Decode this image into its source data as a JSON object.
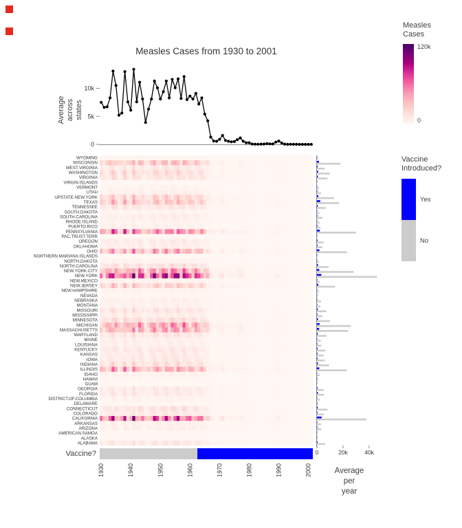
{
  "title": "Measles Cases from 1930 to 2001",
  "colors": {
    "vaccine_yes": "#0000ff",
    "vaccine_no": "#cccccc",
    "line": "#000000",
    "axis_text": "#333333",
    "heat_scale": [
      "#fff7f3",
      "#fde0dd",
      "#fcc5c0",
      "#fa9fb5",
      "#f768a1",
      "#dd3497",
      "#ae017e",
      "#7a0177",
      "#49006a"
    ]
  },
  "legends": {
    "measles": {
      "title_lines": [
        "Measles",
        "Cases"
      ],
      "max_label": "120k",
      "min_label": "0",
      "domain": [
        0,
        120000
      ]
    },
    "vaccine": {
      "title_lines": [
        "Vaccine",
        "Introduced?"
      ],
      "items": [
        {
          "label": "Yes",
          "color": "#0000ff"
        },
        {
          "label": "No",
          "color": "#cccccc"
        }
      ]
    }
  },
  "axes": {
    "line_y": {
      "title_lines": [
        "Average",
        "across",
        "states"
      ],
      "ticks": [
        0,
        5000,
        10000
      ],
      "tick_labels": [
        "0",
        "5k",
        "10k"
      ],
      "max": 13500
    },
    "bar_x": {
      "title_lines": [
        "Average",
        "per",
        "year"
      ],
      "ticks": [
        0,
        20000,
        40000
      ],
      "tick_labels": [
        "0",
        "20k",
        "40k"
      ]
    },
    "year_ticks": [
      1930,
      1940,
      1950,
      1960,
      1970,
      1980,
      1990,
      2000
    ],
    "vaccine_row_label": "Vaccine?"
  },
  "vaccine_year": 1963,
  "chart_data": [
    {
      "type": "line",
      "name": "average-measles-cases-across-states",
      "x_start": 1930,
      "x_end": 2001,
      "ylabel": "Average across states",
      "ylim": [
        0,
        13500
      ],
      "values": [
        7500,
        6600,
        6700,
        8300,
        13100,
        10500,
        5200,
        5600,
        13000,
        7600,
        6100,
        13400,
        7600,
        11100,
        8100,
        3900,
        6300,
        8100,
        11300,
        10100,
        8100,
        9400,
        11300,
        8300,
        11600,
        10100,
        11700,
        8200,
        12100,
        8000,
        8600,
        8100,
        9100,
        7200,
        8300,
        5400,
        4200,
        1300,
        600,
        550,
        900,
        1600,
        700,
        550,
        450,
        500,
        850,
        1150,
        550,
        300,
        300,
        60,
        35,
        30,
        55,
        65,
        140,
        90,
        75,
        400,
        600,
        250,
        55,
        15,
        20,
        10,
        10,
        5,
        5,
        5,
        5,
        5
      ]
    },
    {
      "type": "heatmap",
      "name": "measles-cases-by-state-and-year",
      "x_start": 1930,
      "x_end": 2001,
      "rows": "top-level states[] array, ordered top (WYOMING) to bottom (ALABAMA)",
      "color_domain": [
        0,
        120000
      ],
      "color_scheme": "RdPu (near-white = 0, dark purple = 120k)",
      "note": "cell values estimated as states[i].pre x (national yearly average / 8000) with texture; post-1963 values near zero"
    },
    {
      "type": "bar",
      "name": "average-cases-per-year-by-state",
      "orientation": "horizontal",
      "xlabel": "Average per year",
      "x_ticks": [
        0,
        20000,
        40000
      ],
      "series_note": "two bars per state: blue = average per year after vaccine introduced (states[].post), gray = before vaccine (states[].pre)"
    },
    {
      "type": "strip",
      "name": "vaccine-timeline",
      "label": "Vaccine?",
      "no_span": [
        1930,
        1963
      ],
      "yes_span": [
        1963,
        2001
      ]
    }
  ],
  "states": [
    {
      "name": "WYOMING",
      "pre": 1200,
      "post": 150
    },
    {
      "name": "WISCONSIN",
      "pre": 18000,
      "post": 1600
    },
    {
      "name": "WEST.VIRGINIA",
      "pre": 6000,
      "post": 500
    },
    {
      "name": "WASHINGTON",
      "pre": 10000,
      "post": 900
    },
    {
      "name": "VIRGINIA",
      "pre": 8000,
      "post": 700
    },
    {
      "name": "VIRGIN.ISLANDS",
      "pre": 60,
      "post": 10
    },
    {
      "name": "VERMONT",
      "pre": 1600,
      "post": 120
    },
    {
      "name": "UTAH",
      "pre": 3200,
      "post": 300
    },
    {
      "name": "UPSTATE.NEW.YORK",
      "pre": 13000,
      "post": 1100
    },
    {
      "name": "TEXAS",
      "pre": 17000,
      "post": 2600
    },
    {
      "name": "TENNESSEE",
      "pre": 7000,
      "post": 600
    },
    {
      "name": "SOUTH.DAKOTA",
      "pre": 1900,
      "post": 150
    },
    {
      "name": "SOUTH.CAROLINA",
      "pre": 4200,
      "post": 350
    },
    {
      "name": "RHODE.ISLAND",
      "pre": 2100,
      "post": 150
    },
    {
      "name": "PUERTO.RICO",
      "pre": 2800,
      "post": 400
    },
    {
      "name": "PENNSYLVANIA",
      "pre": 30000,
      "post": 2200
    },
    {
      "name": "PAC.TRUST.TERR",
      "pre": 50,
      "post": 10
    },
    {
      "name": "OREGON",
      "pre": 5200,
      "post": 450
    },
    {
      "name": "OKLAHOMA",
      "pre": 4100,
      "post": 350
    },
    {
      "name": "OHIO",
      "pre": 23000,
      "post": 1900
    },
    {
      "name": "NORTHERN.MARIANA.ISLANDS",
      "pre": 20,
      "post": 5
    },
    {
      "name": "NORTH.DAKOTA",
      "pre": 1600,
      "post": 120
    },
    {
      "name": "NORTH.CAROLINA",
      "pre": 9000,
      "post": 800
    },
    {
      "name": "NEW.YORK.CITY",
      "pre": 28000,
      "post": 1800
    },
    {
      "name": "NEW.YORK",
      "pre": 46000,
      "post": 3400
    },
    {
      "name": "NEW.MEXICO",
      "pre": 2300,
      "post": 250
    },
    {
      "name": "NEW.JERSEY",
      "pre": 14000,
      "post": 1100
    },
    {
      "name": "NEW.HAMPSHIRE",
      "pre": 1600,
      "post": 120
    },
    {
      "name": "NEVADA",
      "pre": 600,
      "post": 80
    },
    {
      "name": "NEBRASKA",
      "pre": 3200,
      "post": 250
    },
    {
      "name": "MONTANA",
      "pre": 2600,
      "post": 200
    },
    {
      "name": "MISSOURI",
      "pre": 7200,
      "post": 600
    },
    {
      "name": "MISSISSIPPI",
      "pre": 4200,
      "post": 350
    },
    {
      "name": "MINNESOTA",
      "pre": 10000,
      "post": 800
    },
    {
      "name": "MICHIGAN",
      "pre": 26000,
      "post": 2000
    },
    {
      "name": "MASSACHUSETTS",
      "pre": 24000,
      "post": 1700
    },
    {
      "name": "MARYLAND",
      "pre": 7200,
      "post": 600
    },
    {
      "name": "MAINE",
      "pre": 3100,
      "post": 250
    },
    {
      "name": "LOUISIANA",
      "pre": 3300,
      "post": 300
    },
    {
      "name": "KENTUCKY",
      "pre": 6400,
      "post": 500
    },
    {
      "name": "KANSAS",
      "pre": 5200,
      "post": 400
    },
    {
      "name": "IOWA",
      "pre": 6100,
      "post": 450
    },
    {
      "name": "INDIANA",
      "pre": 9300,
      "post": 750
    },
    {
      "name": "ILLINOIS",
      "pre": 23000,
      "post": 1800
    },
    {
      "name": "IDAHO",
      "pre": 2200,
      "post": 180
    },
    {
      "name": "HAWAII",
      "pre": 1100,
      "post": 120
    },
    {
      "name": "GUAM",
      "pre": 40,
      "post": 10
    },
    {
      "name": "GEORGIA",
      "pre": 5200,
      "post": 450
    },
    {
      "name": "FLORIDA",
      "pre": 5400,
      "post": 700
    },
    {
      "name": "DISTRICT.OF.COLUMBIA",
      "pre": 2100,
      "post": 150
    },
    {
      "name": "DELAWARE",
      "pre": 1000,
      "post": 80
    },
    {
      "name": "CONNECTICUT",
      "pre": 8200,
      "post": 600
    },
    {
      "name": "COLORADO",
      "pre": 5300,
      "post": 400
    },
    {
      "name": "CALIFORNIA",
      "pre": 38000,
      "post": 3600
    },
    {
      "name": "ARKANSAS",
      "pre": 3200,
      "post": 280
    },
    {
      "name": "ARIZONA",
      "pre": 3300,
      "post": 350
    },
    {
      "name": "AMERICAN.SAMOA",
      "pre": 20,
      "post": 5
    },
    {
      "name": "ALASKA",
      "pre": 500,
      "post": 60
    },
    {
      "name": "ALABAMA",
      "pre": 6200,
      "post": 500
    }
  ]
}
